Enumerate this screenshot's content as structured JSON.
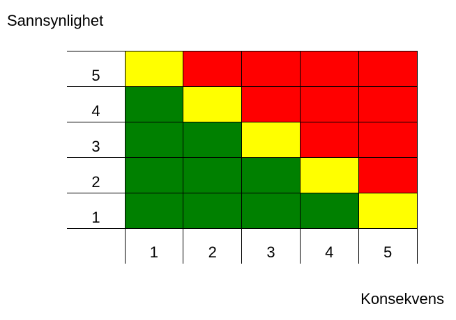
{
  "y_axis_title": "Sannsynlighet",
  "x_axis_title": "Konsekvens",
  "row_labels": [
    "5",
    "4",
    "3",
    "2",
    "1"
  ],
  "column_labels": [
    "1",
    "2",
    "3",
    "4",
    "5"
  ],
  "colors": {
    "low": "#008000",
    "medium": "#ffff00",
    "high": "#ff0000",
    "gridline": "#000000"
  },
  "cells": [
    [
      "medium",
      "high",
      "high",
      "high",
      "high"
    ],
    [
      "low",
      "medium",
      "high",
      "high",
      "high"
    ],
    [
      "low",
      "low",
      "medium",
      "high",
      "high"
    ],
    [
      "low",
      "low",
      "low",
      "medium",
      "high"
    ],
    [
      "low",
      "low",
      "low",
      "low",
      "medium"
    ]
  ]
}
